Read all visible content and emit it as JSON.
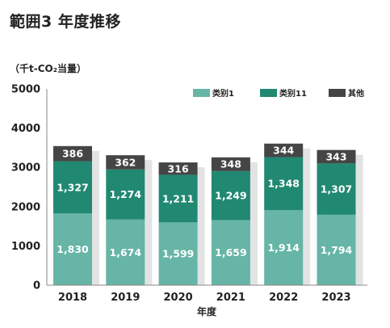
{
  "title": "範囲3  年度推移",
  "chart_data": {
    "type": "bar",
    "stacked": true,
    "ylabel": "（千t-CO₂当量）",
    "xlabel": "年度",
    "ylim": [
      0,
      5000
    ],
    "yticks": [
      "0",
      "1000",
      "2000",
      "3000",
      "4000",
      "5000"
    ],
    "categories": [
      "2018",
      "2019",
      "2020",
      "2021",
      "2022",
      "2023"
    ],
    "legend_position": "top-right",
    "grid": false,
    "series": [
      {
        "name": "类别1",
        "color": "#66b5a6",
        "values": [
          1830,
          1674,
          1599,
          1659,
          1914,
          1794
        ],
        "labels": [
          "1,830",
          "1,674",
          "1,599",
          "1,659",
          "1,914",
          "1,794"
        ]
      },
      {
        "name": "类别11",
        "color": "#218872",
        "values": [
          1327,
          1274,
          1211,
          1249,
          1348,
          1307
        ],
        "labels": [
          "1,327",
          "1,274",
          "1,211",
          "1,249",
          "1,348",
          "1,307"
        ]
      },
      {
        "name": "其他",
        "color": "#454545",
        "values": [
          386,
          362,
          316,
          348,
          344,
          343
        ],
        "labels": [
          "386",
          "362",
          "316",
          "348",
          "344",
          "343"
        ]
      }
    ]
  }
}
